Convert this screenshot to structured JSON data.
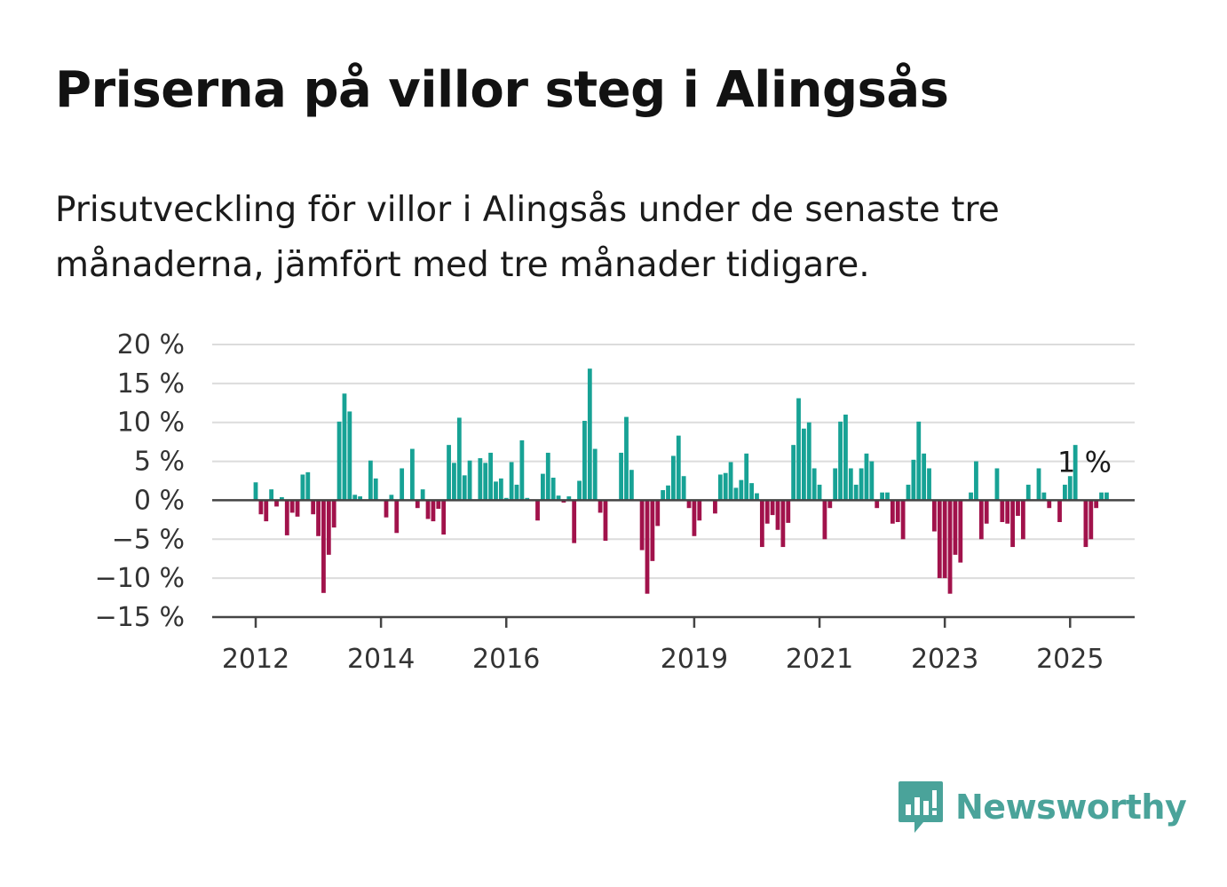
{
  "title": "Priserna på villor steg i Alingsås",
  "subtitle": "Prisutveckling för villor i Alingsås under de senaste tre månaderna, jämfört med tre månader tidigare.",
  "brand": {
    "name": "Newsworthy",
    "color": "#4aa39a",
    "icon": "bar-chart-speech-bubble-icon"
  },
  "chart_data": {
    "type": "bar",
    "ylim": [
      -15,
      20
    ],
    "yticks": [
      -15,
      -10,
      -5,
      0,
      5,
      10,
      15,
      20
    ],
    "ytick_labels": [
      "−15 %",
      "−10 %",
      "−5 %",
      "0 %",
      "5 %",
      "10 %",
      "15 %",
      "20 %"
    ],
    "xtick_labels": [
      "2012",
      "2014",
      "2016",
      "2019",
      "2021",
      "2023",
      "2025"
    ],
    "xtick_values": [
      "2012-01",
      "2014-01",
      "2016-01",
      "2019-01",
      "2021-01",
      "2023-01",
      "2025-01"
    ],
    "grid": true,
    "colors": {
      "positive": "#17a295",
      "negative": "#a1124b",
      "grid": "#dcdcdc",
      "axis": "#444444"
    },
    "annotation": {
      "text": "1 %",
      "month": "2025-03"
    },
    "start_month": "2012-01",
    "values": [
      2.3,
      -1.8,
      -2.7,
      1.4,
      -0.8,
      0.4,
      -4.5,
      -1.6,
      -2.1,
      3.3,
      3.6,
      -1.8,
      -4.6,
      -11.9,
      -7,
      -3.5,
      10.1,
      13.7,
      11.4,
      0.7,
      0.5,
      0,
      5.1,
      2.8,
      0,
      -2.2,
      0.7,
      -4.2,
      4.1,
      0,
      6.6,
      -1,
      1.4,
      -2.4,
      -2.7,
      -1.1,
      -4.4,
      7.1,
      4.8,
      10.6,
      3.2,
      5.1,
      0,
      5.4,
      4.8,
      6.1,
      2.4,
      2.8,
      0.3,
      4.9,
      2,
      7.7,
      0.3,
      0,
      -2.6,
      3.4,
      6.1,
      2.9,
      0.6,
      -0.3,
      0.5,
      -5.5,
      2.5,
      10.2,
      16.9,
      6.6,
      -1.6,
      -5.2,
      0,
      0,
      6.1,
      10.7,
      3.9,
      0,
      -6.4,
      -12,
      -7.8,
      -3.3,
      1.3,
      1.9,
      5.7,
      8.3,
      3.1,
      -1,
      -4.6,
      -2.6,
      0,
      0,
      -1.7,
      3.3,
      3.5,
      4.9,
      1.6,
      2.6,
      6,
      2.2,
      0.9,
      -6,
      -3,
      -1.9,
      -3.8,
      -6,
      -2.9,
      7.1,
      13.1,
      9.2,
      10,
      4.1,
      2,
      -5,
      -1,
      4.1,
      10.1,
      11,
      4.1,
      2,
      4.1,
      6,
      5,
      -1,
      1,
      1,
      -3,
      -2.8,
      -5,
      2,
      5.2,
      10.1,
      6,
      4.1,
      -4,
      -10,
      -10,
      -12,
      -7,
      -8,
      0,
      1,
      5,
      -5,
      -3,
      0,
      4.1,
      -2.8,
      -3,
      -6,
      -2,
      -5,
      2,
      0,
      4.1,
      1,
      -1,
      0,
      -2.8,
      2,
      3.1,
      7.1,
      0,
      -6,
      -5,
      -1,
      1,
      1
    ]
  }
}
